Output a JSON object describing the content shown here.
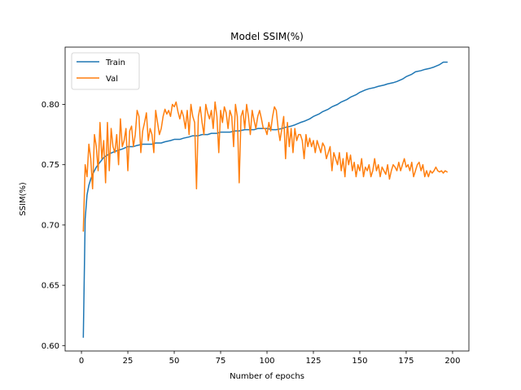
{
  "chart_data": {
    "type": "line",
    "title": "Model SSIM(%)",
    "xlabel": "Number of epochs",
    "ylabel": "SSIM(%)",
    "xlim": [
      -8.8,
      208.8
    ],
    "ylim": [
      0.5955,
      0.8475
    ],
    "xticks": [
      0,
      25,
      50,
      75,
      100,
      125,
      150,
      175,
      200
    ],
    "yticks": [
      0.6,
      0.65,
      0.7,
      0.75,
      0.8
    ],
    "xtick_labels": [
      "0",
      "25",
      "50",
      "75",
      "100",
      "125",
      "150",
      "175",
      "200"
    ],
    "ytick_labels": [
      "0.60",
      "0.65",
      "0.70",
      "0.75",
      "0.80"
    ],
    "grid": false,
    "legend_position": "top-left",
    "series": [
      {
        "name": "Train",
        "color": "#1f77b4",
        "x": [
          1,
          2,
          3,
          4,
          5,
          6,
          7,
          8,
          10,
          12,
          15,
          18,
          20,
          22,
          25,
          28,
          30,
          33,
          35,
          38,
          40,
          43,
          45,
          48,
          50,
          53,
          55,
          58,
          60,
          63,
          65,
          68,
          70,
          73,
          75,
          78,
          80,
          83,
          85,
          88,
          90,
          93,
          95,
          98,
          100,
          103,
          105,
          108,
          110,
          113,
          115,
          118,
          120,
          123,
          125,
          128,
          130,
          133,
          135,
          138,
          140,
          143,
          145,
          148,
          150,
          153,
          155,
          158,
          160,
          163,
          165,
          168,
          170,
          173,
          175,
          178,
          180,
          183,
          185,
          188,
          190,
          193,
          195,
          197
        ],
        "values": [
          0.607,
          0.705,
          0.725,
          0.733,
          0.738,
          0.742,
          0.745,
          0.748,
          0.752,
          0.756,
          0.759,
          0.761,
          0.762,
          0.763,
          0.765,
          0.765,
          0.766,
          0.767,
          0.767,
          0.767,
          0.768,
          0.768,
          0.769,
          0.77,
          0.771,
          0.771,
          0.772,
          0.773,
          0.774,
          0.774,
          0.775,
          0.775,
          0.776,
          0.776,
          0.777,
          0.777,
          0.777,
          0.778,
          0.778,
          0.779,
          0.779,
          0.779,
          0.78,
          0.78,
          0.78,
          0.779,
          0.779,
          0.78,
          0.781,
          0.782,
          0.783,
          0.785,
          0.786,
          0.788,
          0.79,
          0.792,
          0.794,
          0.796,
          0.798,
          0.8,
          0.802,
          0.804,
          0.806,
          0.808,
          0.81,
          0.812,
          0.813,
          0.814,
          0.815,
          0.816,
          0.817,
          0.818,
          0.819,
          0.821,
          0.823,
          0.825,
          0.827,
          0.828,
          0.829,
          0.83,
          0.831,
          0.833,
          0.835,
          0.835
        ]
      },
      {
        "name": "Val",
        "color": "#ff7f0e",
        "x": [
          1,
          2,
          3,
          4,
          5,
          6,
          7,
          8,
          9,
          10,
          11,
          12,
          13,
          14,
          15,
          16,
          17,
          18,
          19,
          20,
          21,
          22,
          23,
          24,
          25,
          26,
          27,
          28,
          29,
          30,
          31,
          32,
          33,
          34,
          35,
          36,
          37,
          38,
          39,
          40,
          41,
          42,
          43,
          44,
          45,
          46,
          47,
          48,
          49,
          50,
          51,
          52,
          53,
          54,
          55,
          56,
          57,
          58,
          59,
          60,
          61,
          62,
          63,
          64,
          65,
          66,
          67,
          68,
          69,
          70,
          71,
          72,
          73,
          74,
          75,
          76,
          77,
          78,
          79,
          80,
          81,
          82,
          83,
          84,
          85,
          86,
          87,
          88,
          89,
          90,
          91,
          92,
          93,
          94,
          95,
          96,
          97,
          98,
          99,
          100,
          101,
          102,
          103,
          104,
          105,
          106,
          107,
          108,
          109,
          110,
          111,
          112,
          113,
          114,
          115,
          116,
          117,
          118,
          119,
          120,
          121,
          122,
          123,
          124,
          125,
          126,
          127,
          128,
          129,
          130,
          131,
          132,
          133,
          134,
          135,
          136,
          137,
          138,
          139,
          140,
          141,
          142,
          143,
          144,
          145,
          146,
          147,
          148,
          149,
          150,
          151,
          152,
          153,
          154,
          155,
          156,
          157,
          158,
          159,
          160,
          161,
          162,
          163,
          164,
          165,
          166,
          167,
          168,
          169,
          170,
          171,
          172,
          173,
          174,
          175,
          176,
          177,
          178,
          179,
          180,
          181,
          182,
          183,
          184,
          185,
          186,
          187,
          188,
          189,
          190,
          191,
          192,
          193,
          194,
          195,
          196,
          197
        ],
        "values": [
          0.695,
          0.75,
          0.74,
          0.767,
          0.755,
          0.73,
          0.775,
          0.765,
          0.745,
          0.785,
          0.755,
          0.77,
          0.735,
          0.785,
          0.745,
          0.78,
          0.765,
          0.76,
          0.775,
          0.75,
          0.788,
          0.765,
          0.77,
          0.78,
          0.745,
          0.778,
          0.782,
          0.765,
          0.775,
          0.795,
          0.79,
          0.76,
          0.778,
          0.785,
          0.793,
          0.77,
          0.78,
          0.775,
          0.76,
          0.795,
          0.785,
          0.775,
          0.78,
          0.79,
          0.796,
          0.792,
          0.795,
          0.79,
          0.8,
          0.798,
          0.802,
          0.794,
          0.788,
          0.795,
          0.79,
          0.78,
          0.795,
          0.775,
          0.8,
          0.79,
          0.785,
          0.73,
          0.79,
          0.798,
          0.785,
          0.775,
          0.8,
          0.793,
          0.788,
          0.795,
          0.78,
          0.802,
          0.79,
          0.76,
          0.795,
          0.785,
          0.798,
          0.793,
          0.78,
          0.795,
          0.79,
          0.765,
          0.8,
          0.79,
          0.735,
          0.79,
          0.795,
          0.78,
          0.8,
          0.79,
          0.775,
          0.795,
          0.787,
          0.78,
          0.79,
          0.795,
          0.788,
          0.78,
          0.78,
          0.775,
          0.785,
          0.778,
          0.79,
          0.798,
          0.795,
          0.78,
          0.77,
          0.78,
          0.79,
          0.755,
          0.785,
          0.765,
          0.78,
          0.76,
          0.78,
          0.77,
          0.775,
          0.775,
          0.77,
          0.755,
          0.775,
          0.765,
          0.772,
          0.765,
          0.77,
          0.76,
          0.77,
          0.765,
          0.76,
          0.768,
          0.765,
          0.755,
          0.76,
          0.765,
          0.745,
          0.76,
          0.755,
          0.75,
          0.76,
          0.745,
          0.755,
          0.74,
          0.76,
          0.75,
          0.758,
          0.745,
          0.752,
          0.74,
          0.75,
          0.745,
          0.755,
          0.74,
          0.748,
          0.745,
          0.75,
          0.74,
          0.745,
          0.755,
          0.745,
          0.75,
          0.74,
          0.748,
          0.745,
          0.742,
          0.75,
          0.738,
          0.745,
          0.75,
          0.748,
          0.745,
          0.752,
          0.745,
          0.75,
          0.755,
          0.748,
          0.75,
          0.745,
          0.752,
          0.74,
          0.745,
          0.75,
          0.752,
          0.745,
          0.75,
          0.74,
          0.745,
          0.74,
          0.745,
          0.743,
          0.745,
          0.748,
          0.745,
          0.744,
          0.745,
          0.743,
          0.745,
          0.744
        ]
      }
    ]
  }
}
